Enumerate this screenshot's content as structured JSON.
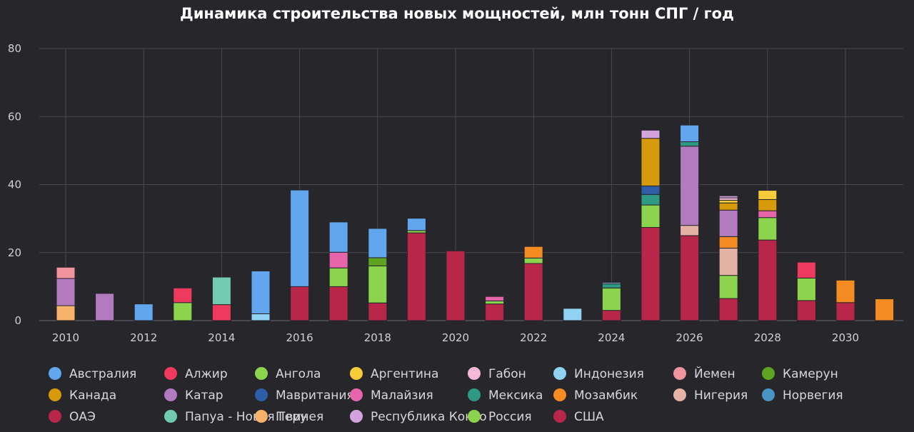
{
  "chart_data": {
    "type": "bar",
    "stacked": true,
    "title": "Динамика строительства новых мощностей, млн тонн СПГ / год",
    "ylim": [
      0,
      80
    ],
    "yticks": [
      0,
      20,
      40,
      60,
      80
    ],
    "xticks": [
      2010,
      2012,
      2014,
      2016,
      2018,
      2020,
      2022,
      2024,
      2026,
      2028,
      2030
    ],
    "grid": true,
    "legend_position": "bottom",
    "categories": [
      2010,
      2011,
      2012,
      2013,
      2014,
      2015,
      2016,
      2017,
      2018,
      2019,
      2020,
      2021,
      2022,
      2023,
      2024,
      2025,
      2026,
      2027,
      2028,
      2029,
      2030,
      2031
    ],
    "series": [
      {
        "name": "США",
        "color": "#b8264a",
        "values": [
          0,
          0,
          0,
          0,
          0,
          0,
          10,
          10,
          5.2,
          25.8,
          20.5,
          4.9,
          16.8,
          0,
          3,
          27.4,
          25,
          6.5,
          23.7,
          5.9,
          5.3,
          0
        ]
      },
      {
        "name": "ОАЭ",
        "color": "#b8264a",
        "values": [
          0,
          0,
          0,
          0,
          0,
          0,
          0,
          0,
          0,
          0,
          0,
          0,
          0,
          0,
          0,
          0,
          0,
          0,
          0,
          0,
          0,
          0
        ]
      },
      {
        "name": "Россия",
        "color": "#8cd44e",
        "values": [
          0,
          0,
          0,
          5.3,
          0,
          0,
          0,
          5.5,
          10.9,
          0.7,
          0,
          0.9,
          1.6,
          0,
          6.6,
          6.6,
          0,
          6.8,
          6.6,
          6.6,
          0,
          0
        ]
      },
      {
        "name": "Ангола",
        "color": "#8cd44e",
        "values": [
          0,
          0,
          0,
          0,
          0,
          0,
          0,
          0,
          0,
          0,
          0,
          0,
          0,
          0,
          0,
          0,
          0,
          0,
          0,
          0,
          0,
          0
        ]
      },
      {
        "name": "Камерун",
        "color": "#5ea421",
        "values": [
          0,
          0,
          0,
          0,
          0,
          0,
          0,
          0,
          2.4,
          0,
          0,
          0,
          0,
          0,
          0,
          0,
          0,
          0,
          0,
          0,
          0,
          0
        ]
      },
      {
        "name": "Перу",
        "color": "#f7b36b",
        "values": [
          4.4,
          0,
          0,
          0,
          0,
          0,
          0,
          0,
          0,
          0,
          0,
          0,
          0,
          0,
          0,
          0,
          0,
          0,
          0,
          0,
          0,
          0
        ]
      },
      {
        "name": "Нигерия",
        "color": "#e6b2a6",
        "values": [
          0,
          0,
          0,
          0,
          0,
          0,
          0,
          0,
          0,
          0,
          0,
          0,
          0,
          0,
          0,
          0,
          3,
          8,
          0,
          0,
          0,
          0
        ]
      },
      {
        "name": "Мозамбик",
        "color": "#f58b23",
        "values": [
          0,
          0,
          0,
          0,
          0,
          0,
          0,
          0,
          0,
          0,
          0,
          0,
          3.4,
          0,
          0,
          0,
          0,
          3.4,
          0,
          0,
          6.6,
          6.4
        ]
      },
      {
        "name": "Катар",
        "color": "#b37bbf",
        "values": [
          8,
          8,
          0,
          0,
          0,
          0,
          0,
          0,
          0,
          0,
          0,
          0,
          0,
          0,
          0,
          0,
          23.3,
          7.8,
          0,
          0,
          0,
          0
        ]
      },
      {
        "name": "Малайзия",
        "color": "#e765ab",
        "values": [
          0,
          0,
          0,
          0,
          0,
          0,
          0,
          4.6,
          0,
          0,
          0,
          1.3,
          0,
          0,
          0,
          0,
          0,
          0,
          2,
          0,
          0,
          0
        ]
      },
      {
        "name": "Мексика",
        "color": "#2e9a86",
        "values": [
          0,
          0,
          0,
          0,
          0,
          0,
          0,
          0,
          0,
          0,
          0,
          0,
          0,
          0,
          1.2,
          3.1,
          1.3,
          0,
          0,
          0,
          0,
          0
        ]
      },
      {
        "name": "Мавритания",
        "color": "#2e5ea8",
        "values": [
          0,
          0,
          0,
          0,
          0,
          0,
          0,
          0,
          0,
          0,
          0,
          0,
          0,
          0,
          0,
          2.5,
          0,
          0,
          0,
          0,
          0,
          0
        ]
      },
      {
        "name": "Канада",
        "color": "#d79a0a",
        "values": [
          0,
          0,
          0,
          0,
          0,
          0,
          0,
          0,
          0,
          0,
          0,
          0,
          0,
          0,
          0,
          14,
          0,
          2.1,
          3.3,
          0,
          0,
          0
        ]
      },
      {
        "name": "Аргентина",
        "color": "#f7cb3a",
        "values": [
          0,
          0,
          0,
          0,
          0,
          0,
          0,
          0,
          0,
          0,
          0,
          0,
          0,
          0,
          0,
          0,
          0,
          0.8,
          2.7,
          0,
          0,
          0
        ]
      },
      {
        "name": "Габон",
        "color": "#f5b8d6",
        "values": [
          0,
          0,
          0,
          0,
          0,
          0,
          0,
          0,
          0,
          0,
          0,
          0,
          0,
          0,
          0,
          0,
          0,
          0.7,
          0,
          0,
          0,
          0
        ]
      },
      {
        "name": "Республика Конго",
        "color": "#d3a3de",
        "values": [
          0,
          0,
          0,
          0,
          0,
          0,
          0,
          0,
          0,
          0,
          0,
          0,
          0,
          0,
          0,
          2.4,
          0,
          0.6,
          0,
          0,
          0,
          0
        ]
      },
      {
        "name": "Йемен",
        "color": "#f0949d",
        "values": [
          3.3,
          0,
          0,
          0,
          0,
          0,
          0,
          0,
          0,
          0,
          0,
          0,
          0,
          0,
          0,
          0,
          0,
          0,
          0,
          0,
          0,
          0
        ]
      },
      {
        "name": "Алжир",
        "color": "#ee3a5e",
        "values": [
          0,
          0,
          0,
          4.3,
          4.7,
          0,
          0,
          0,
          0,
          0,
          0,
          0,
          0,
          0,
          0,
          0,
          0,
          0,
          0,
          4.7,
          0,
          0
        ]
      },
      {
        "name": "Папуа - Новая Гвинея",
        "color": "#72cbb0",
        "values": [
          0,
          0,
          0,
          0,
          8.1,
          0,
          0,
          0,
          0,
          0,
          0,
          0,
          0,
          0,
          0,
          0,
          0,
          0,
          0,
          0,
          0,
          0
        ]
      },
      {
        "name": "Индонезия",
        "color": "#8fd2f2",
        "values": [
          0,
          0,
          0,
          0,
          0,
          2,
          0,
          0,
          0,
          0,
          0,
          0,
          0,
          3.6,
          0.4,
          0,
          0,
          0,
          0,
          0,
          0,
          0
        ]
      },
      {
        "name": "Норвегия",
        "color": "#4894c4",
        "values": [
          0,
          0,
          0,
          0,
          0,
          0,
          0,
          0,
          0,
          0,
          0,
          0,
          0,
          0,
          0,
          0,
          0,
          0,
          0,
          0,
          0,
          0
        ]
      },
      {
        "name": "Австралия",
        "color": "#62a6ef",
        "values": [
          0,
          0,
          4.9,
          0,
          0,
          12.6,
          28.4,
          8.9,
          8.6,
          3.6,
          0,
          0,
          0,
          0,
          0,
          0,
          4.9,
          0,
          0,
          0,
          0,
          0
        ]
      }
    ],
    "legend": [
      {
        "name": "Австралия",
        "color": "#62a6ef"
      },
      {
        "name": "Алжир",
        "color": "#ee3a5e"
      },
      {
        "name": "Ангола",
        "color": "#8cd44e"
      },
      {
        "name": "Аргентина",
        "color": "#f7cb3a"
      },
      {
        "name": "Габон",
        "color": "#f5b8d6"
      },
      {
        "name": "Индонезия",
        "color": "#8fd2f2"
      },
      {
        "name": "Йемен",
        "color": "#f0949d"
      },
      {
        "name": "Камерун",
        "color": "#5ea421"
      },
      {
        "name": "Канада",
        "color": "#d79a0a"
      },
      {
        "name": "Катар",
        "color": "#b37bbf"
      },
      {
        "name": "Мавритания",
        "color": "#2e5ea8"
      },
      {
        "name": "Малайзия",
        "color": "#e765ab"
      },
      {
        "name": "Мексика",
        "color": "#2e9a86"
      },
      {
        "name": "Мозамбик",
        "color": "#f58b23"
      },
      {
        "name": "Нигерия",
        "color": "#e6b2a6"
      },
      {
        "name": "Норвегия",
        "color": "#4894c4"
      },
      {
        "name": "ОАЭ",
        "color": "#b8264a"
      },
      {
        "name": "Папуа - Новая Гвинея",
        "color": "#72cbb0"
      },
      {
        "name": "Перу",
        "color": "#f7b36b"
      },
      {
        "name": "Республика Конго",
        "color": "#d3a3de"
      },
      {
        "name": "Россия",
        "color": "#8cd44e"
      },
      {
        "name": "США",
        "color": "#b8264a"
      }
    ]
  }
}
